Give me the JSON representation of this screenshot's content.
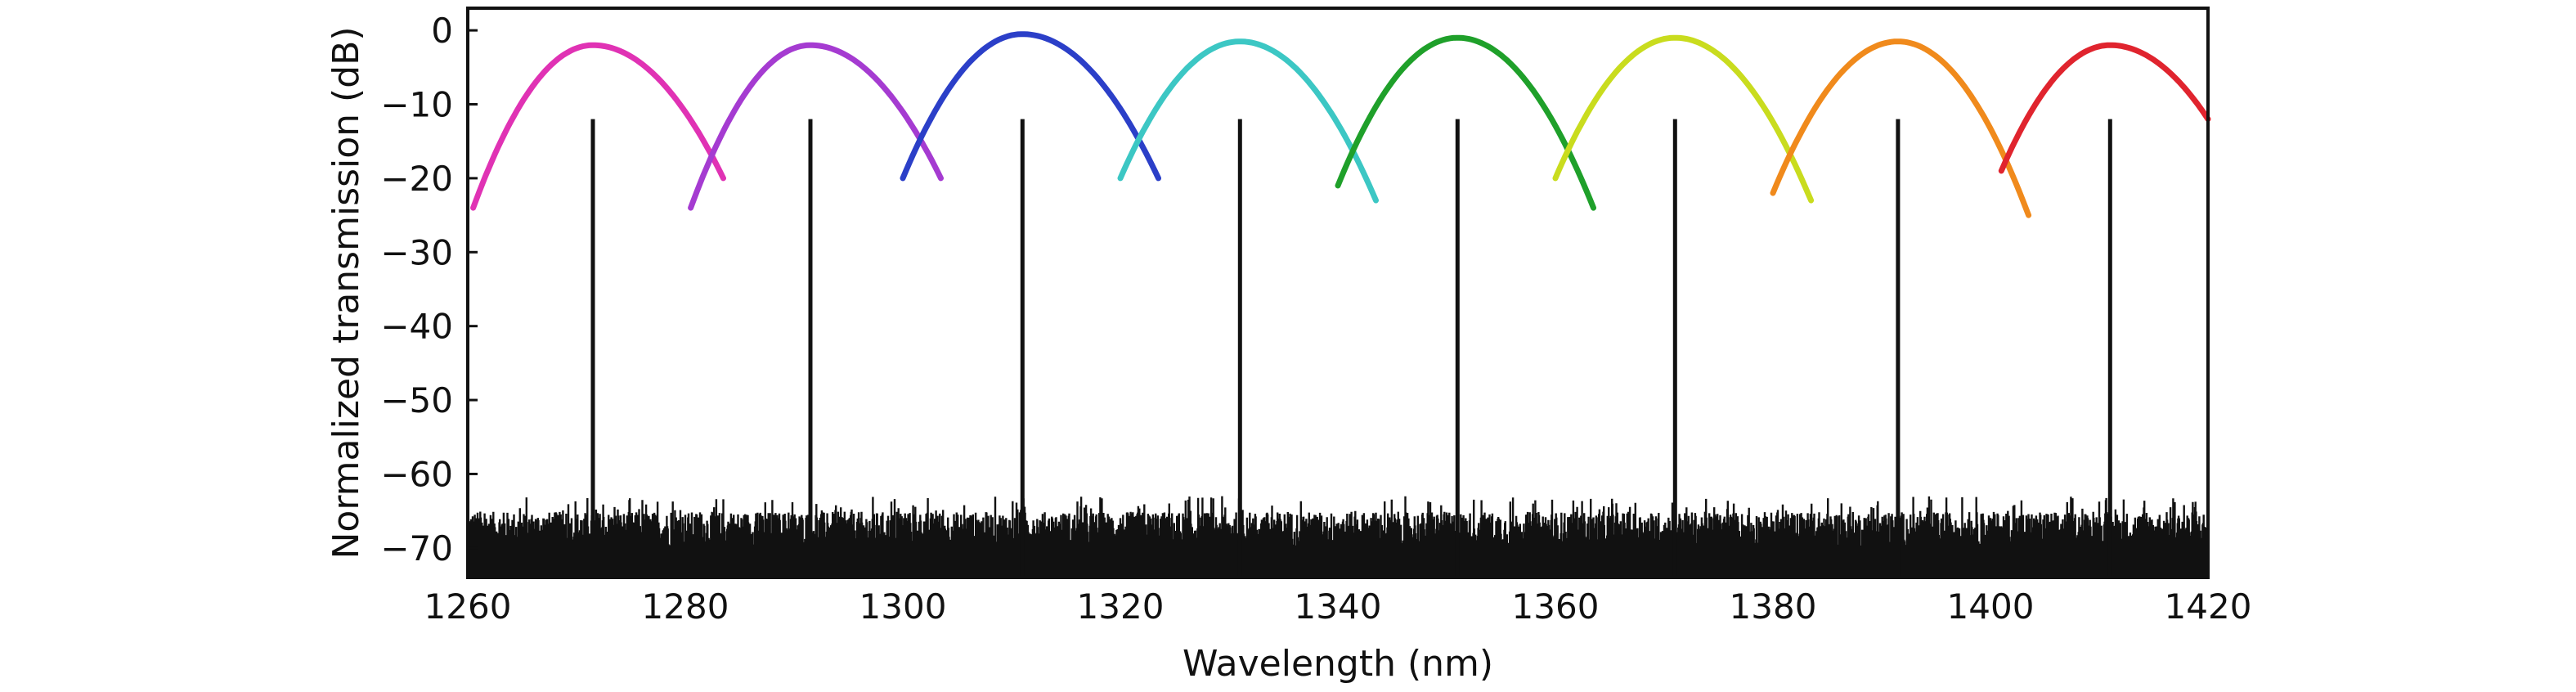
{
  "chart_data": {
    "type": "line",
    "title": "",
    "xlabel": "Wavelength (nm)",
    "ylabel": "Normalized transmission (dB)",
    "xlim": [
      1260,
      1420
    ],
    "ylim": [
      -74,
      3
    ],
    "x_ticks": [
      1260,
      1280,
      1300,
      1320,
      1340,
      1360,
      1380,
      1400,
      1420
    ],
    "y_ticks": [
      0,
      -10,
      -20,
      -30,
      -40,
      -50,
      -60,
      -70
    ],
    "y_tick_labels": [
      "0",
      "−10",
      "−20",
      "−30",
      "−40",
      "−50",
      "−60",
      "−70"
    ],
    "grid": false,
    "legend": "none",
    "noise_floor_db": [
      -70,
      -63
    ],
    "laser_peak_db": -12,
    "channels": [
      {
        "center": 1271.5,
        "peak_db": -2.0,
        "x_start": 1260.5,
        "y_start": -24,
        "x_end": 1283.5,
        "y_end": -20,
        "color": "#e032b4"
      },
      {
        "center": 1291.5,
        "peak_db": -2.0,
        "x_start": 1280.5,
        "y_start": -24,
        "x_end": 1303.5,
        "y_end": -20,
        "color": "#a53bd1"
      },
      {
        "center": 1311.0,
        "peak_db": -0.5,
        "x_start": 1300.0,
        "y_start": -20,
        "x_end": 1323.5,
        "y_end": -20,
        "color": "#2b3fc8"
      },
      {
        "center": 1331.0,
        "peak_db": -1.5,
        "x_start": 1320.0,
        "y_start": -20,
        "x_end": 1343.5,
        "y_end": -23,
        "color": "#3cc7c4"
      },
      {
        "center": 1351.0,
        "peak_db": -1.0,
        "x_start": 1340.0,
        "y_start": -21,
        "x_end": 1363.5,
        "y_end": -24,
        "color": "#1fa02a"
      },
      {
        "center": 1371.0,
        "peak_db": -1.0,
        "x_start": 1360.0,
        "y_start": -20,
        "x_end": 1383.5,
        "y_end": -23,
        "color": "#c9dc1e"
      },
      {
        "center": 1391.5,
        "peak_db": -1.5,
        "x_start": 1380.0,
        "y_start": -22,
        "x_end": 1403.5,
        "y_end": -25,
        "color": "#f08a1c"
      },
      {
        "center": 1411.0,
        "peak_db": -2.0,
        "x_start": 1401.0,
        "y_start": -19,
        "x_end": 1420.0,
        "y_end": -12,
        "color": "#e0242e"
      }
    ]
  }
}
